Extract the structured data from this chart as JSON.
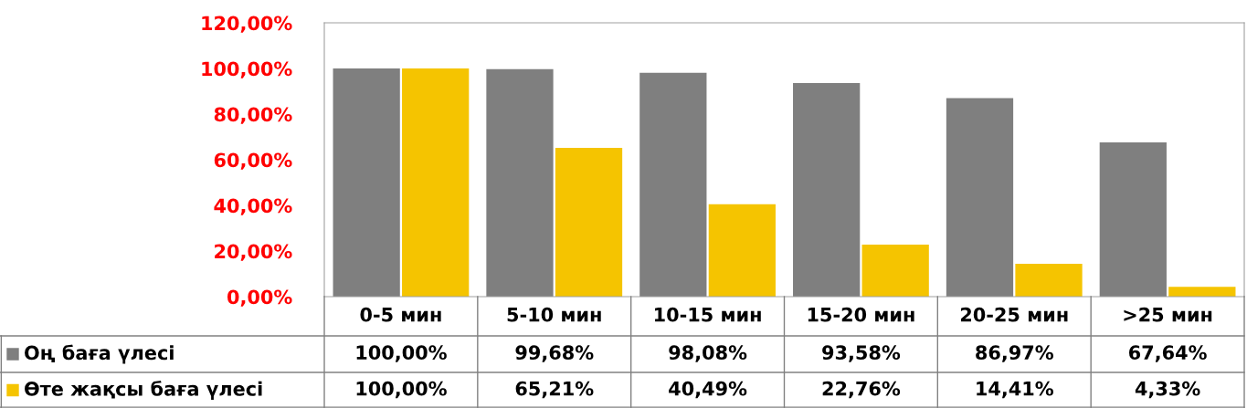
{
  "chart_data": {
    "type": "bar",
    "categories": [
      "0-5 мин",
      "5-10 мин",
      "10-15 мин",
      "15-20 мин",
      "20-25 мин",
      ">25 мин"
    ],
    "series": [
      {
        "name": "Оң баға үлесі",
        "color": "#7f7f7f",
        "values": [
          100,
          99.68,
          98.08,
          93.58,
          86.97,
          67.64
        ],
        "value_labels": [
          "100,00%",
          "99,68%",
          "98,08%",
          "93,58%",
          "86,97%",
          "67,64%"
        ]
      },
      {
        "name": "Өте жақсы баға үлесі",
        "color": "#f5c400",
        "values": [
          100,
          65.21,
          40.49,
          22.76,
          14.41,
          4.33
        ],
        "value_labels": [
          "100,00%",
          "65,21%",
          "40,49%",
          "22,76%",
          "14,41%",
          "4,33%"
        ]
      }
    ],
    "ylim": [
      0,
      120
    ],
    "yticks": [
      {
        "value": 0,
        "label": "0,00%"
      },
      {
        "value": 20,
        "label": "20,00%"
      },
      {
        "value": 40,
        "label": "40,00%"
      },
      {
        "value": 60,
        "label": "60,00%"
      },
      {
        "value": 80,
        "label": "80,00%"
      },
      {
        "value": 100,
        "label": "100,00%"
      },
      {
        "value": 120,
        "label": "120,00%"
      }
    ],
    "grid": false,
    "legend": "bottom left"
  }
}
